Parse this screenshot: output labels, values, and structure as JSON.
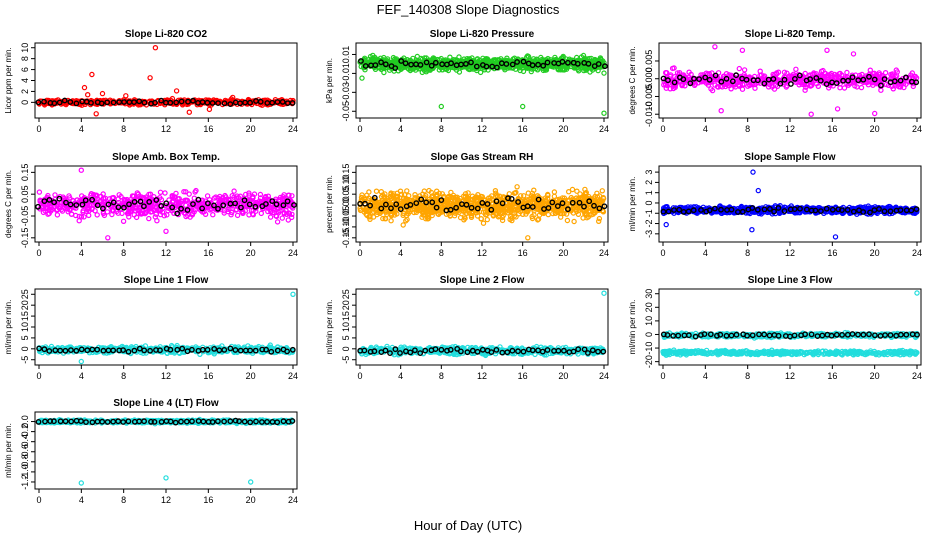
{
  "title": "FEF_140308  Slope Diagnostics",
  "xlabel": "Hour of Day (UTC)",
  "colors": {
    "reference": "#000000",
    "red": "#ff0000",
    "green": "#22cc22",
    "magenta": "#ff00ff",
    "orange": "#ffa500",
    "blue": "#0000ff",
    "cyan": "#22dddd"
  },
  "chart_data": [
    {
      "type": "scatter",
      "title": "Slope Li-820 CO2",
      "ylabel": "Licor ppm per min.",
      "xlim": [
        0,
        24
      ],
      "ylim": [
        -2.5,
        10.5
      ],
      "xticks": [
        "0",
        "4",
        "8",
        "12",
        "16",
        "20",
        "24"
      ],
      "yticks": [
        "0",
        "2",
        "4",
        "6",
        "8",
        "10"
      ],
      "ytick_values": [
        0,
        2,
        4,
        6,
        8,
        10
      ],
      "series": [
        {
          "color": "#ff0000",
          "base": 0,
          "spread": 0.8,
          "density": 1,
          "outliers": [
            [
              4.3,
              2.7
            ],
            [
              4.6,
              1.4
            ],
            [
              5.0,
              5.1
            ],
            [
              5.4,
              -2.1
            ],
            [
              6.0,
              1.6
            ],
            [
              8.2,
              1.2
            ],
            [
              10.5,
              4.5
            ],
            [
              11.0,
              10.0
            ],
            [
              13.0,
              2.1
            ],
            [
              14.2,
              -1.8
            ],
            [
              16.1,
              -1.3
            ],
            [
              18.3,
              0.9
            ]
          ]
        }
      ]
    },
    {
      "type": "scatter",
      "title": "Slope Li-820 Pressure",
      "ylabel": "kPa per min.",
      "xlim": [
        0,
        24
      ],
      "ylim": [
        -0.055,
        0.02
      ],
      "xticks": [
        "0",
        "4",
        "8",
        "12",
        "16",
        "20",
        "24"
      ],
      "yticks": [
        "0.01",
        "-0.01",
        "-0.03",
        "-0.05"
      ],
      "ytick_values": [
        0.01,
        -0.01,
        -0.03,
        -0.05
      ],
      "series": [
        {
          "color": "#22cc22",
          "base": 0.0,
          "spread": 0.011,
          "density": 2.5,
          "outliers": [
            [
              0.2,
              -0.015
            ],
            [
              8.0,
              -0.045
            ],
            [
              16.0,
              -0.045
            ],
            [
              24.0,
              -0.052
            ]
          ]
        }
      ]
    },
    {
      "type": "scatter",
      "title": "Slope Li-820 Temp.",
      "ylabel": "degrees C per min.",
      "xlim": [
        0,
        24
      ],
      "ylim": [
        -0.0105,
        0.0095
      ],
      "xticks": [
        "0",
        "4",
        "8",
        "12",
        "16",
        "20",
        "24"
      ],
      "yticks": [
        "-0.010",
        "-0.005",
        "0.000",
        "0.005"
      ],
      "ytick_values": [
        -0.01,
        -0.005,
        0.0,
        0.005
      ],
      "series": [
        {
          "color": "#ff00ff",
          "base": -0.0003,
          "spread": 0.004,
          "density": 1.3,
          "outliers": [
            [
              4.9,
              0.009
            ],
            [
              7.5,
              0.008
            ],
            [
              5.5,
              -0.009
            ],
            [
              14.0,
              -0.01
            ],
            [
              15.5,
              0.008
            ],
            [
              16.5,
              -0.0085
            ],
            [
              18.0,
              0.007
            ],
            [
              20.0,
              -0.0098
            ]
          ]
        }
      ]
    },
    {
      "type": "scatter",
      "title": "Slope Amb. Box Temp.",
      "ylabel": "degrees C per min.",
      "xlim": [
        0,
        24
      ],
      "ylim": [
        -0.16,
        0.17
      ],
      "xticks": [
        "0",
        "4",
        "8",
        "12",
        "16",
        "20",
        "24"
      ],
      "yticks": [
        "-0.15",
        "-0.05",
        "0.05",
        "0.15"
      ],
      "ytick_values": [
        -0.15,
        -0.05,
        0.05,
        0.15
      ],
      "series": [
        {
          "color": "#ff00ff",
          "base": 0.0,
          "spread": 0.09,
          "density": 1.5,
          "outliers": [
            [
              6.5,
              -0.15
            ],
            [
              4.0,
              0.16
            ],
            [
              12.0,
              -0.12
            ]
          ]
        }
      ]
    },
    {
      "type": "scatter",
      "title": "Slope Gas Stream RH",
      "ylabel": "percent per min.",
      "xlim": [
        0,
        24
      ],
      "ylim": [
        -0.16,
        0.17
      ],
      "xticks": [
        "0",
        "4",
        "8",
        "12",
        "16",
        "20",
        "24"
      ],
      "yticks": [
        "-0.15",
        "-0.10",
        "-0.05",
        "0.00",
        "0.05",
        "0.10",
        "0.15"
      ],
      "ytick_values": [
        -0.15,
        -0.1,
        -0.05,
        0.0,
        0.05,
        0.1,
        0.15
      ],
      "series": [
        {
          "color": "#ffa500",
          "base": 0.0,
          "spread": 0.1,
          "density": 2.5,
          "outliers": [
            [
              16.5,
              -0.15
            ]
          ]
        }
      ]
    },
    {
      "type": "scatter",
      "title": "Slope Sample Flow",
      "ylabel": "ml/min per min.",
      "xlim": [
        0,
        24
      ],
      "ylim": [
        -3.6,
        3.4
      ],
      "xticks": [
        "0",
        "4",
        "8",
        "12",
        "16",
        "20",
        "24"
      ],
      "yticks": [
        "-3",
        "-2",
        "-1",
        "0",
        "1",
        "2",
        "3"
      ],
      "ytick_values": [
        -3,
        -2,
        -1,
        0,
        1,
        2,
        3
      ],
      "series": [
        {
          "color": "#0000ff",
          "base": -0.7,
          "spread": 0.55,
          "density": 1.7,
          "outliers": [
            [
              8.5,
              3.0
            ],
            [
              9.0,
              1.2
            ],
            [
              8.4,
              -2.6
            ],
            [
              16.3,
              -3.3
            ],
            [
              0.3,
              -2.1
            ]
          ]
        }
      ]
    },
    {
      "type": "scatter",
      "title": "Slope Line 1 Flow",
      "ylabel": "ml/min per min.",
      "xlim": [
        0,
        24
      ],
      "ylim": [
        -6.5,
        26.5
      ],
      "xticks": [
        "0",
        "4",
        "8",
        "12",
        "16",
        "20",
        "24"
      ],
      "yticks": [
        "-5",
        "0",
        "5",
        "10",
        "15",
        "20",
        "25"
      ],
      "ytick_values": [
        -5,
        0,
        5,
        10,
        15,
        20,
        25
      ],
      "series": [
        {
          "color": "#22dddd",
          "base": -0.5,
          "spread": 2.5,
          "density": 1.2,
          "outliers": [
            [
              4.0,
              -5.8
            ],
            [
              24.0,
              25.0
            ]
          ]
        }
      ]
    },
    {
      "type": "scatter",
      "title": "Slope Line 2 Flow",
      "ylabel": "ml/min per min.",
      "xlim": [
        0,
        24
      ],
      "ylim": [
        -6.5,
        26.5
      ],
      "xticks": [
        "0",
        "4",
        "8",
        "12",
        "16",
        "20",
        "24"
      ],
      "yticks": [
        "-5",
        "0",
        "5",
        "10",
        "15",
        "20",
        "25"
      ],
      "ytick_values": [
        -5,
        0,
        5,
        10,
        15,
        20,
        25
      ],
      "series": [
        {
          "color": "#22dddd",
          "base": -1.0,
          "spread": 2.6,
          "density": 1.2,
          "outliers": [
            [
              24.0,
              25.5
            ]
          ]
        }
      ]
    },
    {
      "type": "scatter",
      "title": "Slope Line 3 Flow",
      "ylabel": "ml/min per min.",
      "xlim": [
        0,
        24
      ],
      "ylim": [
        -21,
        32
      ],
      "xticks": [
        "0",
        "4",
        "8",
        "12",
        "16",
        "20",
        "24"
      ],
      "yticks": [
        "-20",
        "-10",
        "0",
        "10",
        "20",
        "30"
      ],
      "ytick_values": [
        -20,
        -10,
        0,
        10,
        20,
        30
      ],
      "series": [
        {
          "color": "#22dddd",
          "base": -0.5,
          "spread": 2.5,
          "density": 1.0,
          "outliers": [
            [
              24.0,
              30.5
            ]
          ]
        },
        {
          "color": "#22dddd",
          "base": -13.5,
          "spread": 2.5,
          "density": 1.0,
          "outliers": []
        }
      ]
    },
    {
      "type": "scatter",
      "title": "Slope Line 4 (LT) Flow",
      "ylabel": "ml/min per min.",
      "xlim": [
        0,
        24
      ],
      "ylim": [
        -1.3,
        0.15
      ],
      "xticks": [
        "0",
        "4",
        "8",
        "12",
        "16",
        "20",
        "24"
      ],
      "yticks": [
        "-1.2",
        "-1.0",
        "-0.8",
        "-0.6",
        "-0.4",
        "-0.2",
        "0.0"
      ],
      "ytick_values": [
        -1.2,
        -1.0,
        -0.8,
        -0.6,
        -0.4,
        -0.2,
        0.0
      ],
      "series": [
        {
          "color": "#22dddd",
          "base": 0.0,
          "spread": 0.05,
          "density": 1.4,
          "outliers": [
            [
              4.0,
              -1.22
            ],
            [
              12.0,
              -1.12
            ],
            [
              20.0,
              -1.2
            ]
          ]
        }
      ]
    }
  ]
}
